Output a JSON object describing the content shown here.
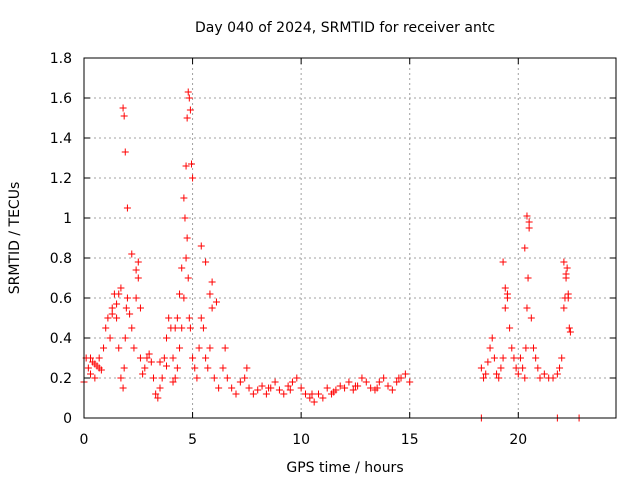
{
  "chart_data": {
    "type": "scatter",
    "title": "Day 040 of 2024, SRMTID for receiver antc",
    "xlabel": "GPS time / hours",
    "ylabel": "SRMTID / TECUs",
    "xlim": [
      0,
      24.5
    ],
    "ylim": [
      0,
      1.8
    ],
    "xticks": [
      0,
      5,
      10,
      15,
      20
    ],
    "xtick_labels": [
      "0",
      "5",
      "10",
      "15",
      "20"
    ],
    "yticks": [
      0,
      0.2,
      0.4,
      0.6,
      0.8,
      1.0,
      1.2,
      1.4,
      1.6,
      1.8
    ],
    "ytick_labels": [
      "0",
      "0.2",
      "0.4",
      "0.6",
      "0.8",
      "1",
      "1.2",
      "1.4",
      "1.6",
      "1.8"
    ],
    "grid": true,
    "marker": "+",
    "color": "#ff0000",
    "series": [
      {
        "name": "SRMTID",
        "x": [
          0.0,
          0.1,
          0.2,
          0.3,
          0.4,
          0.5,
          0.6,
          0.7,
          0.8,
          0.9,
          1.0,
          1.1,
          1.2,
          1.3,
          1.4,
          1.5,
          1.6,
          1.7,
          1.8,
          1.85,
          1.9,
          1.95,
          2.0,
          2.1,
          2.2,
          2.3,
          2.4,
          2.5,
          2.6,
          2.7,
          2.8,
          2.9,
          3.0,
          3.1,
          3.2,
          3.3,
          3.4,
          3.5,
          3.6,
          3.7,
          3.8,
          3.9,
          4.0,
          4.1,
          4.2,
          4.3,
          4.4,
          4.5,
          4.6,
          4.7,
          4.75,
          4.8,
          4.85,
          4.9,
          5.0,
          5.1,
          5.2,
          5.3,
          5.4,
          5.5,
          5.6,
          5.7,
          5.8,
          5.9,
          6.0,
          6.2,
          6.4,
          6.6,
          6.8,
          7.0,
          7.2,
          7.4,
          7.6,
          7.8,
          8.0,
          8.2,
          8.4,
          8.6,
          8.8,
          9.0,
          9.2,
          9.4,
          9.6,
          9.8,
          10.0,
          10.2,
          10.4,
          10.6,
          10.8,
          11.0,
          11.2,
          11.4,
          11.6,
          11.8,
          12.0,
          12.2,
          12.4,
          12.6,
          12.8,
          13.0,
          13.2,
          13.4,
          13.6,
          13.8,
          14.0,
          14.2,
          14.4,
          14.6,
          14.8,
          15.0,
          18.3,
          18.4,
          18.5,
          18.6,
          18.7,
          18.8,
          18.9,
          19.0,
          19.1,
          19.2,
          19.3,
          19.4,
          19.5,
          19.6,
          19.7,
          19.8,
          19.9,
          20.0,
          20.1,
          20.2,
          20.3,
          20.35,
          20.4,
          20.45,
          20.5,
          20.6,
          20.7,
          20.8,
          20.9,
          21.0,
          21.2,
          21.4,
          21.6,
          21.8,
          21.9,
          22.0,
          22.1,
          22.15,
          22.2,
          22.25,
          22.3,
          22.35,
          22.4,
          1.8,
          1.85,
          1.9,
          2.0,
          2.2,
          2.4,
          1.3,
          1.5,
          1.6,
          1.7,
          2.5,
          2.6,
          4.6,
          4.65,
          4.7,
          4.75,
          4.8,
          4.85,
          4.9,
          4.95,
          5.0,
          4.5,
          4.4,
          4.3,
          4.2,
          5.4,
          5.6,
          5.8,
          5.9,
          6.1,
          19.3,
          19.4,
          19.5,
          20.3,
          20.4,
          20.5,
          22.1,
          22.2,
          22.3,
          0.3,
          0.5,
          0.7,
          3.5,
          3.8,
          4.1,
          8.5,
          9.5,
          10.5,
          11.5,
          12.5,
          13.5,
          14.5,
          6.5,
          7.5,
          18.3,
          21.8,
          22.8
        ],
        "y": [
          0.18,
          0.3,
          0.25,
          0.22,
          0.28,
          0.2,
          0.26,
          0.3,
          0.24,
          0.35,
          0.45,
          0.5,
          0.4,
          0.55,
          0.62,
          0.5,
          0.35,
          0.2,
          0.15,
          0.25,
          0.4,
          0.55,
          0.6,
          0.52,
          0.45,
          0.35,
          0.6,
          0.7,
          0.3,
          0.22,
          0.25,
          0.3,
          0.32,
          0.28,
          0.2,
          0.12,
          0.1,
          0.15,
          0.2,
          0.3,
          0.4,
          0.5,
          0.45,
          0.3,
          0.2,
          0.25,
          0.35,
          0.45,
          0.6,
          0.8,
          0.9,
          0.7,
          0.5,
          0.45,
          0.3,
          0.25,
          0.2,
          0.35,
          0.5,
          0.45,
          0.3,
          0.25,
          0.35,
          0.55,
          0.2,
          0.15,
          0.25,
          0.2,
          0.15,
          0.12,
          0.18,
          0.2,
          0.15,
          0.12,
          0.14,
          0.16,
          0.12,
          0.15,
          0.18,
          0.14,
          0.12,
          0.16,
          0.18,
          0.2,
          0.15,
          0.12,
          0.1,
          0.08,
          0.12,
          0.1,
          0.15,
          0.12,
          0.14,
          0.16,
          0.15,
          0.18,
          0.14,
          0.16,
          0.2,
          0.18,
          0.15,
          0.14,
          0.18,
          0.2,
          0.16,
          0.14,
          0.18,
          0.2,
          0.22,
          0.18,
          0.25,
          0.2,
          0.22,
          0.28,
          0.35,
          0.4,
          0.3,
          0.22,
          0.2,
          0.25,
          0.3,
          0.55,
          0.6,
          0.45,
          0.35,
          0.3,
          0.25,
          0.22,
          0.3,
          0.25,
          0.2,
          0.35,
          0.55,
          0.7,
          0.95,
          0.5,
          0.35,
          0.3,
          0.25,
          0.2,
          0.22,
          0.2,
          0.2,
          0.22,
          0.25,
          0.3,
          0.55,
          0.6,
          0.7,
          0.75,
          0.62,
          0.45,
          0.43,
          1.55,
          1.51,
          1.33,
          1.05,
          0.82,
          0.74,
          0.52,
          0.57,
          0.62,
          0.65,
          0.78,
          0.55,
          1.1,
          1.0,
          1.26,
          1.5,
          1.63,
          1.6,
          1.54,
          1.27,
          1.2,
          0.75,
          0.62,
          0.5,
          0.45,
          0.86,
          0.78,
          0.62,
          0.68,
          0.58,
          0.78,
          0.65,
          0.62,
          0.85,
          1.01,
          0.98,
          0.78,
          0.72,
          0.6,
          0.3,
          0.27,
          0.25,
          0.28,
          0.26,
          0.18,
          0.15,
          0.14,
          0.12,
          0.13,
          0.16,
          0.15,
          0.2,
          0.35,
          0.25,
          0.0,
          0.0,
          0.0
        ]
      }
    ]
  }
}
